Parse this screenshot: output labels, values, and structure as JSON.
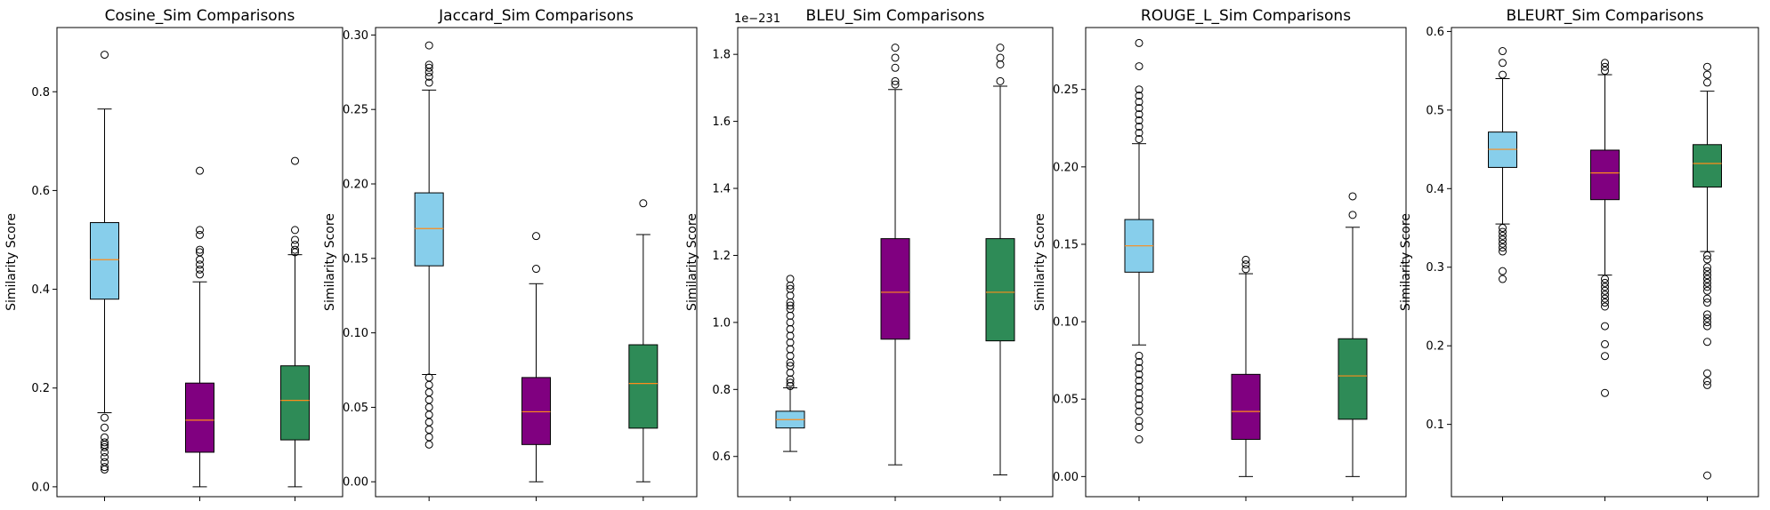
{
  "chart_data": [
    {
      "type": "box",
      "title": "Cosine_Sim Comparisons",
      "ylabel": "Similarity Score",
      "ylim": [
        -0.02,
        0.93
      ],
      "yticks": [
        0.0,
        0.2,
        0.4,
        0.6,
        0.8
      ],
      "ytick_labels": [
        "0.0",
        "0.2",
        "0.4",
        "0.6",
        "0.8"
      ],
      "offset_text": "",
      "boxes": [
        {
          "color": "#87ceeb",
          "whislo": 0.15,
          "q1": 0.38,
          "med": 0.46,
          "q3": 0.535,
          "whishi": 0.765,
          "fliers": [
            0.035,
            0.04,
            0.05,
            0.06,
            0.07,
            0.08,
            0.085,
            0.09,
            0.1,
            0.12,
            0.14,
            0.875
          ]
        },
        {
          "color": "#800080",
          "whislo": 0.0,
          "q1": 0.07,
          "med": 0.135,
          "q3": 0.21,
          "whishi": 0.415,
          "fliers": [
            0.43,
            0.44,
            0.45,
            0.46,
            0.475,
            0.48,
            0.51,
            0.52,
            0.64
          ]
        },
        {
          "color": "#2e8b57",
          "whislo": 0.0,
          "q1": 0.095,
          "med": 0.175,
          "q3": 0.245,
          "whishi": 0.47,
          "fliers": [
            0.475,
            0.48,
            0.49,
            0.5,
            0.52,
            0.66
          ]
        }
      ]
    },
    {
      "type": "box",
      "title": "Jaccard_Sim Comparisons",
      "ylabel": "Similarity Score",
      "ylim": [
        -0.01,
        0.305
      ],
      "yticks": [
        0.0,
        0.05,
        0.1,
        0.15,
        0.2,
        0.25,
        0.3
      ],
      "ytick_labels": [
        "0.00",
        "0.05",
        "0.10",
        "0.15",
        "0.20",
        "0.25",
        "0.30"
      ],
      "offset_text": "",
      "boxes": [
        {
          "color": "#87ceeb",
          "whislo": 0.072,
          "q1": 0.145,
          "med": 0.17,
          "q3": 0.194,
          "whishi": 0.263,
          "fliers": [
            0.025,
            0.03,
            0.035,
            0.04,
            0.045,
            0.05,
            0.055,
            0.06,
            0.065,
            0.07,
            0.268,
            0.272,
            0.275,
            0.278,
            0.28,
            0.293
          ]
        },
        {
          "color": "#800080",
          "whislo": 0.0,
          "q1": 0.025,
          "med": 0.047,
          "q3": 0.07,
          "whishi": 0.133,
          "fliers": [
            0.143,
            0.165
          ]
        },
        {
          "color": "#2e8b57",
          "whislo": 0.0,
          "q1": 0.036,
          "med": 0.066,
          "q3": 0.092,
          "whishi": 0.166,
          "fliers": [
            0.187
          ]
        }
      ]
    },
    {
      "type": "box",
      "title": "BLEU_Sim Comparisons",
      "ylabel": "Similarity Score",
      "ylim": [
        0.48,
        1.88
      ],
      "yticks": [
        0.6,
        0.8,
        1.0,
        1.2,
        1.4,
        1.6,
        1.8
      ],
      "ytick_labels": [
        "0.6",
        "0.8",
        "1.0",
        "1.2",
        "1.4",
        "1.6",
        "1.8"
      ],
      "offset_text": "1e−231",
      "boxes": [
        {
          "color": "#87ceeb",
          "whislo": 0.615,
          "q1": 0.685,
          "med": 0.71,
          "q3": 0.735,
          "whishi": 0.805,
          "fliers": [
            0.81,
            0.82,
            0.83,
            0.85,
            0.87,
            0.88,
            0.9,
            0.92,
            0.94,
            0.96,
            0.98,
            1.0,
            1.02,
            1.04,
            1.05,
            1.06,
            1.08,
            1.1,
            1.11,
            1.13
          ]
        },
        {
          "color": "#800080",
          "whislo": 0.575,
          "q1": 0.95,
          "med": 1.09,
          "q3": 1.25,
          "whishi": 1.695,
          "fliers": [
            1.71,
            1.72,
            1.76,
            1.79,
            1.82
          ]
        },
        {
          "color": "#2e8b57",
          "whislo": 0.545,
          "q1": 0.945,
          "med": 1.09,
          "q3": 1.25,
          "whishi": 1.705,
          "fliers": [
            1.72,
            1.77,
            1.79,
            1.82
          ]
        }
      ]
    },
    {
      "type": "box",
      "title": "ROUGE_L_Sim Comparisons",
      "ylabel": "Similarity Score",
      "ylim": [
        -0.013,
        0.29
      ],
      "yticks": [
        0.0,
        0.05,
        0.1,
        0.15,
        0.2,
        0.25
      ],
      "ytick_labels": [
        "0.00",
        "0.05",
        "0.10",
        "0.15",
        "0.20",
        "0.25"
      ],
      "offset_text": "",
      "boxes": [
        {
          "color": "#87ceeb",
          "whislo": 0.085,
          "q1": 0.132,
          "med": 0.149,
          "q3": 0.166,
          "whishi": 0.215,
          "fliers": [
            0.024,
            0.032,
            0.036,
            0.042,
            0.046,
            0.05,
            0.054,
            0.058,
            0.062,
            0.066,
            0.07,
            0.074,
            0.078,
            0.218,
            0.222,
            0.226,
            0.23,
            0.234,
            0.238,
            0.242,
            0.246,
            0.25,
            0.265,
            0.28
          ]
        },
        {
          "color": "#800080",
          "whislo": 0.0,
          "q1": 0.024,
          "med": 0.042,
          "q3": 0.066,
          "whishi": 0.131,
          "fliers": [
            0.134,
            0.137,
            0.14
          ]
        },
        {
          "color": "#2e8b57",
          "whislo": 0.0,
          "q1": 0.037,
          "med": 0.065,
          "q3": 0.089,
          "whishi": 0.161,
          "fliers": [
            0.169,
            0.181
          ]
        }
      ]
    },
    {
      "type": "box",
      "title": "BLEURT_Sim Comparisons",
      "ylabel": "Similarity Score",
      "ylim": [
        0.008,
        0.605
      ],
      "yticks": [
        0.1,
        0.2,
        0.3,
        0.4,
        0.5,
        0.6
      ],
      "ytick_labels": [
        "0.1",
        "0.2",
        "0.3",
        "0.4",
        "0.5",
        "0.6"
      ],
      "offset_text": "",
      "boxes": [
        {
          "color": "#87ceeb",
          "whislo": 0.355,
          "q1": 0.427,
          "med": 0.45,
          "q3": 0.472,
          "whishi": 0.54,
          "fliers": [
            0.285,
            0.295,
            0.32,
            0.325,
            0.33,
            0.335,
            0.34,
            0.345,
            0.35,
            0.545,
            0.56,
            0.575
          ]
        },
        {
          "color": "#800080",
          "whislo": 0.29,
          "q1": 0.386,
          "med": 0.42,
          "q3": 0.449,
          "whishi": 0.545,
          "fliers": [
            0.14,
            0.187,
            0.202,
            0.225,
            0.25,
            0.255,
            0.26,
            0.265,
            0.27,
            0.275,
            0.28,
            0.285,
            0.55,
            0.555,
            0.56
          ]
        },
        {
          "color": "#2e8b57",
          "whislo": 0.32,
          "q1": 0.402,
          "med": 0.432,
          "q3": 0.456,
          "whishi": 0.524,
          "fliers": [
            0.035,
            0.15,
            0.155,
            0.165,
            0.205,
            0.225,
            0.23,
            0.235,
            0.24,
            0.255,
            0.26,
            0.27,
            0.275,
            0.28,
            0.285,
            0.29,
            0.295,
            0.3,
            0.31,
            0.315,
            0.535,
            0.545,
            0.555
          ]
        }
      ]
    }
  ]
}
